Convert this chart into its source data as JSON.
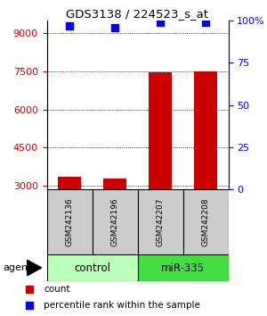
{
  "title": "GDS3138 / 224523_s_at",
  "samples": [
    "GSM242136",
    "GSM242196",
    "GSM242207",
    "GSM242208"
  ],
  "counts": [
    3350,
    3300,
    7450,
    7500
  ],
  "percentile_ranks": [
    97,
    96,
    99,
    99
  ],
  "ylim_left": [
    2850,
    9500
  ],
  "ylim_right": [
    0,
    100
  ],
  "yticks_left": [
    3000,
    4500,
    6000,
    7500,
    9000
  ],
  "yticks_right": [
    0,
    25,
    50,
    75,
    100
  ],
  "bar_color": "#cc0000",
  "dot_color": "#0000ff",
  "bar_width": 0.5,
  "groups": [
    {
      "label": "control",
      "samples": [
        0,
        1
      ],
      "color": "#bbffbb"
    },
    {
      "label": "miR-335",
      "samples": [
        2,
        3
      ],
      "color": "#44dd44"
    }
  ],
  "agent_label": "agent",
  "legend_count_label": "count",
  "legend_pct_label": "percentile rank within the sample",
  "background_color": "#ffffff",
  "left_axis_color": "#cc0000",
  "right_axis_color": "#0000ff",
  "sample_box_color": "#cccccc",
  "dot_size": 35,
  "bar_bottom": 2850
}
